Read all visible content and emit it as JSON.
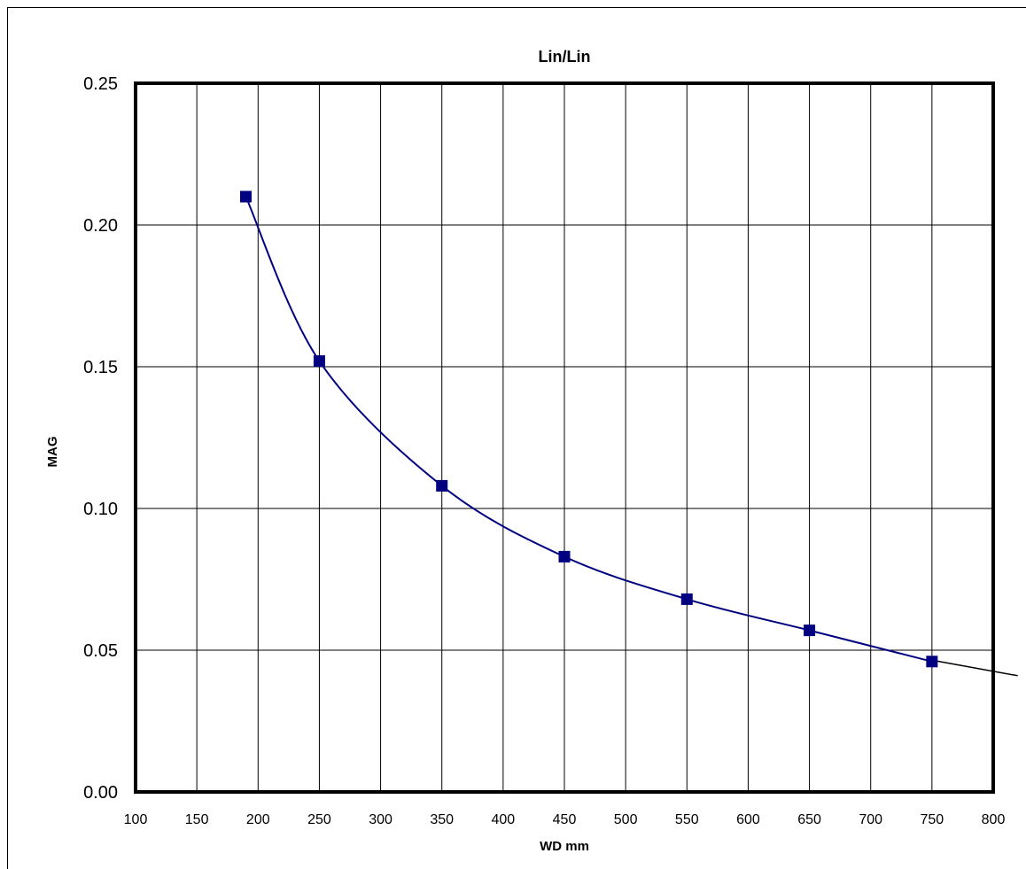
{
  "chart_data": {
    "type": "line",
    "title": "Lin/Lin",
    "xlabel": "WD mm",
    "ylabel": "MAG",
    "xlim": [
      100,
      800
    ],
    "ylim": [
      0,
      0.25
    ],
    "x_ticks": [
      100,
      150,
      200,
      250,
      300,
      350,
      400,
      450,
      500,
      550,
      600,
      650,
      700,
      750,
      800
    ],
    "x_tick_labels": [
      "100",
      "150",
      "200",
      "250",
      "300",
      "350",
      "400",
      "450",
      "500",
      "550",
      "600",
      "650",
      "700",
      "750",
      "800"
    ],
    "y_ticks": [
      0,
      0.05,
      0.1,
      0.15,
      0.2,
      0.25
    ],
    "y_tick_labels": [
      "0.00",
      "0.05",
      "0.10",
      "0.15",
      "0.20",
      "0.25"
    ],
    "grid": true,
    "series": [
      {
        "marker": "square",
        "color": "#000080",
        "x": [
          190,
          250,
          350,
          450,
          550,
          650,
          750
        ],
        "y": [
          0.21,
          0.152,
          0.108,
          0.083,
          0.068,
          0.057,
          0.046
        ]
      }
    ],
    "trendline": {
      "color": "#000000",
      "x": [
        750,
        820
      ],
      "y": [
        0.0465,
        0.041
      ]
    }
  }
}
